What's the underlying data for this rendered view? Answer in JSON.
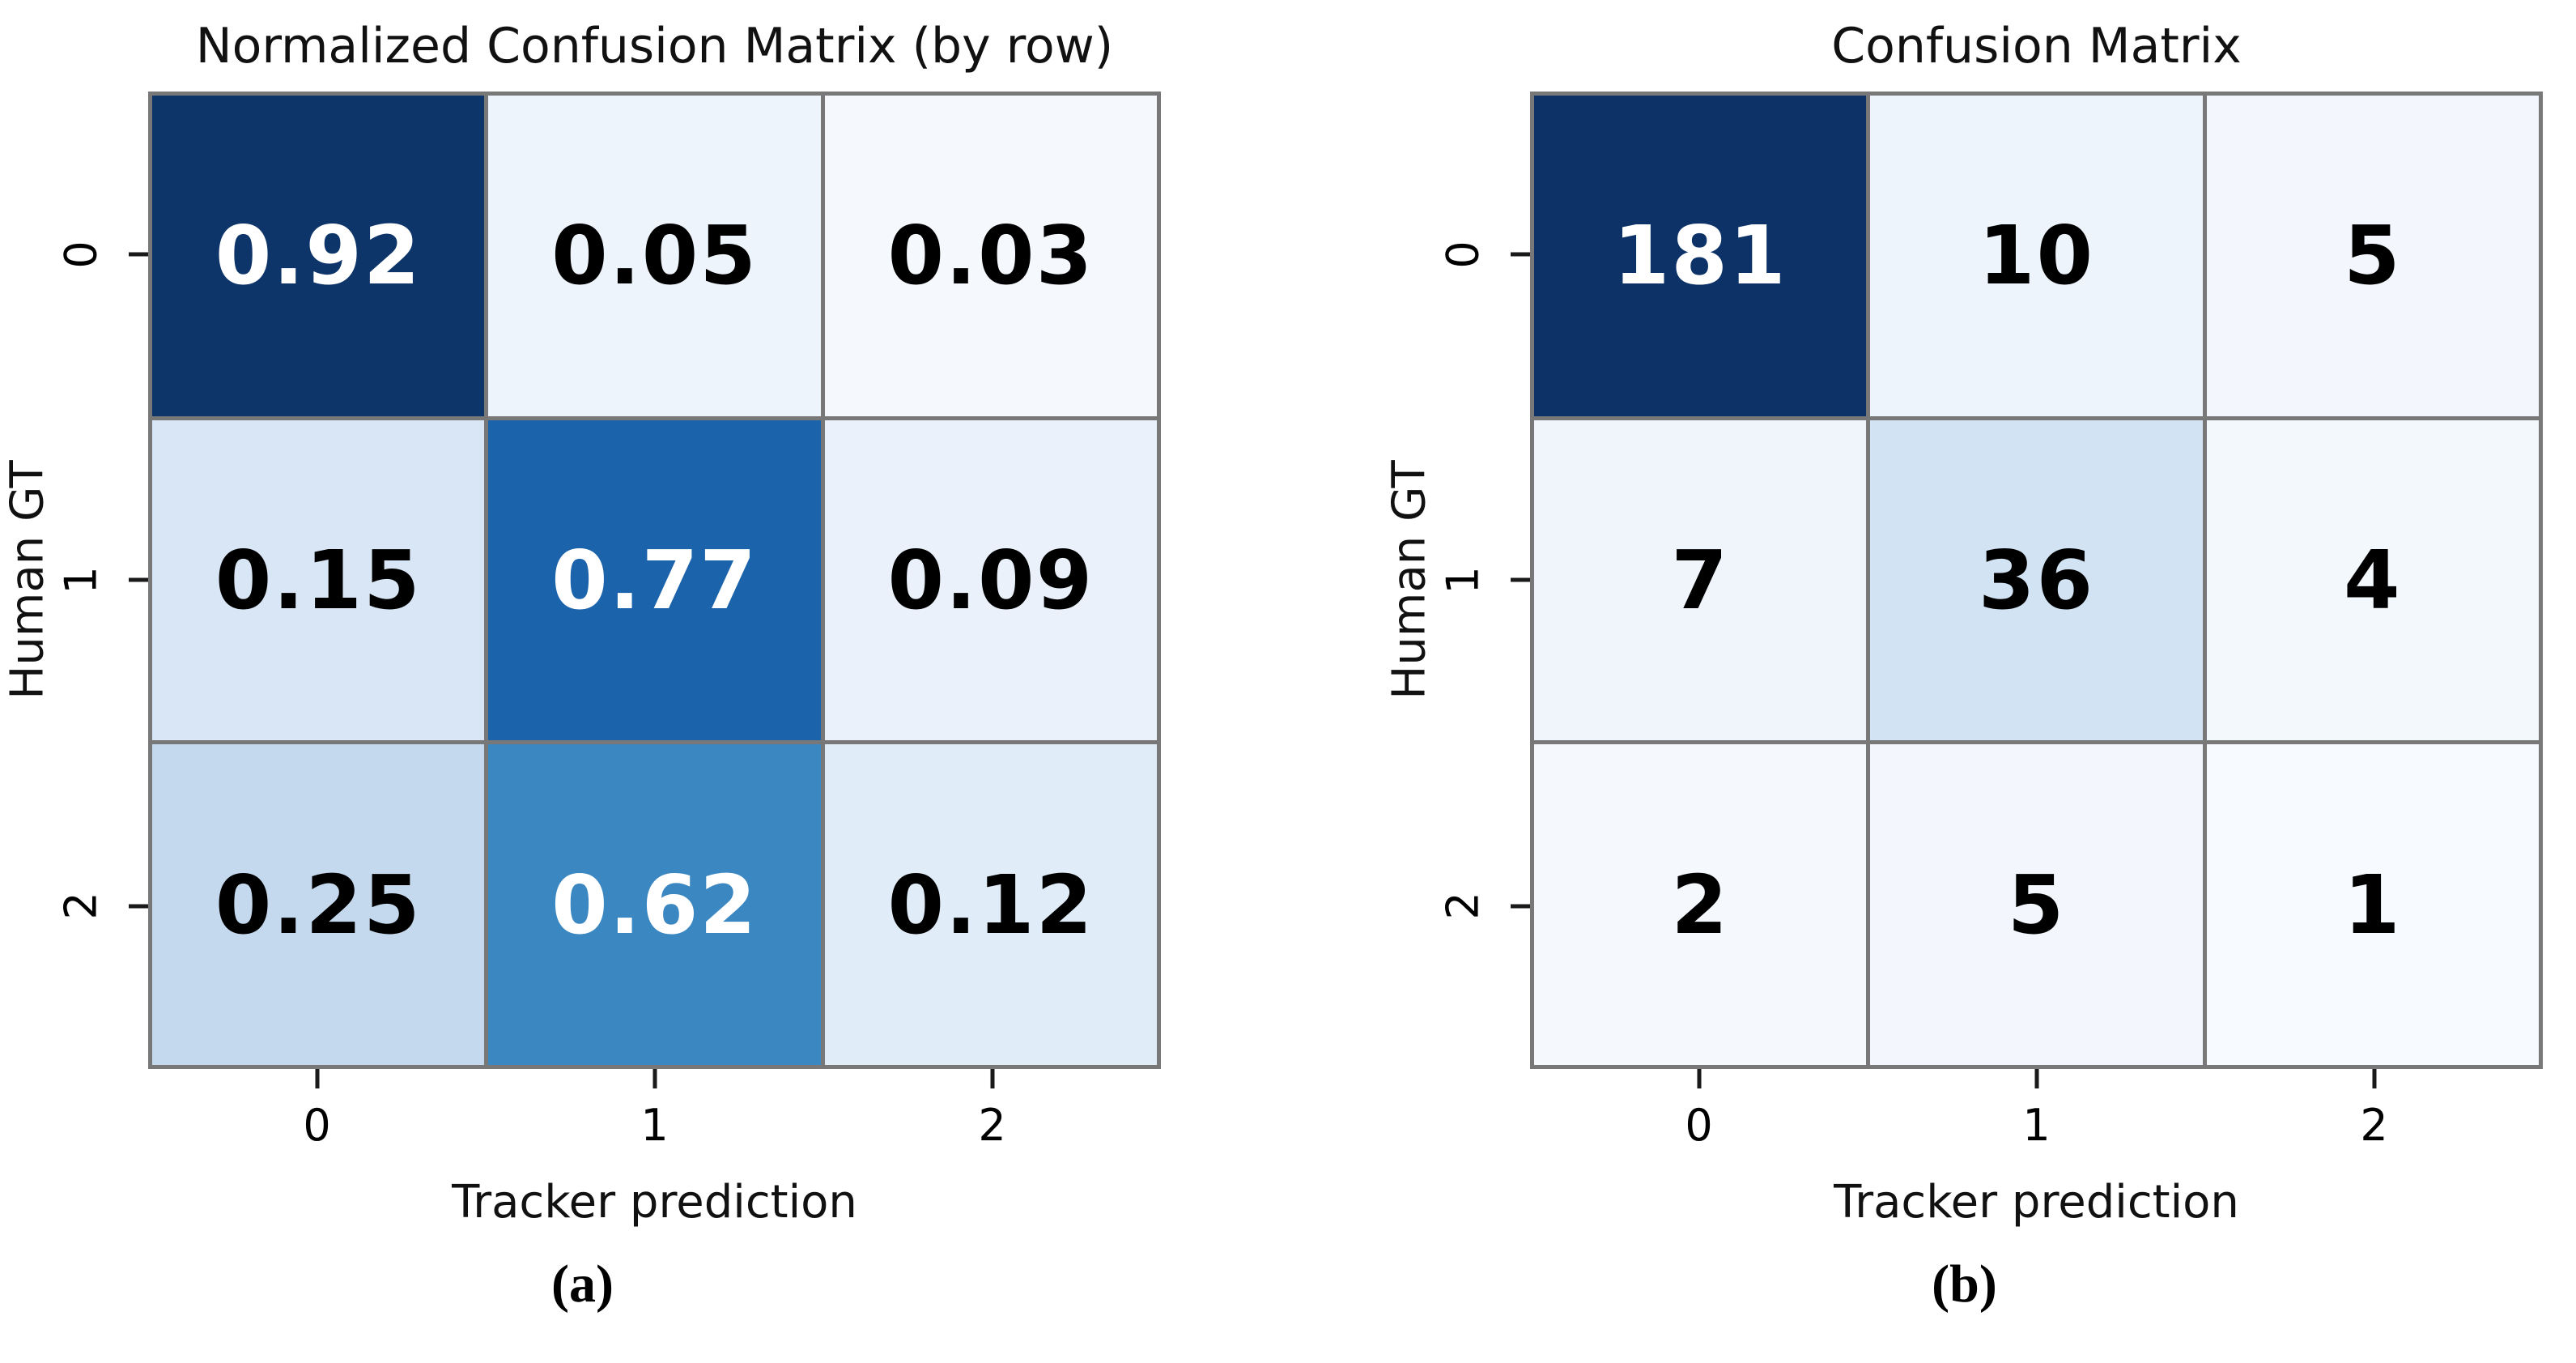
{
  "colors": {
    "grid_line": "#787878",
    "tick_mark": "#1a1a1a",
    "annotation_light": "#ffffff",
    "annotation_dark": "#000000",
    "background": "#ffffff",
    "colormap": "Blues"
  },
  "chart_data": [
    {
      "type": "heatmap",
      "title": "Normalized Confusion Matrix (by row)",
      "xlabel": "Tracker prediction",
      "ylabel": "Human GT",
      "x_ticks": [
        "0",
        "1",
        "2"
      ],
      "y_ticks": [
        "0",
        "1",
        "2"
      ],
      "caption": "(a)",
      "rows": [
        [
          {
            "value": "0.92",
            "bg": "#0e356a",
            "fg": "#ffffff"
          },
          {
            "value": "0.05",
            "bg": "#eef4fb",
            "fg": "#000000"
          },
          {
            "value": "0.03",
            "bg": "#f5f9fe",
            "fg": "#000000"
          }
        ],
        [
          {
            "value": "0.15",
            "bg": "#d8e6f5",
            "fg": "#000000"
          },
          {
            "value": "0.77",
            "bg": "#1b63ab",
            "fg": "#ffffff"
          },
          {
            "value": "0.09",
            "bg": "#eaf1fa",
            "fg": "#000000"
          }
        ],
        [
          {
            "value": "0.25",
            "bg": "#c5d9ee",
            "fg": "#000000"
          },
          {
            "value": "0.62",
            "bg": "#3a87c2",
            "fg": "#ffffff"
          },
          {
            "value": "0.12",
            "bg": "#e0ecf7",
            "fg": "#000000"
          }
        ]
      ]
    },
    {
      "type": "heatmap",
      "title": "Confusion Matrix",
      "xlabel": "Tracker prediction",
      "ylabel": "Human GT",
      "x_ticks": [
        "0",
        "1",
        "2"
      ],
      "y_ticks": [
        "0",
        "1",
        "2"
      ],
      "caption": "(b)",
      "rows": [
        [
          {
            "value": "181",
            "bg": "#0c3268",
            "fg": "#ffffff"
          },
          {
            "value": "10",
            "bg": "#eef4fb",
            "fg": "#000000"
          },
          {
            "value": "5",
            "bg": "#f3f7fd",
            "fg": "#000000"
          }
        ],
        [
          {
            "value": "7",
            "bg": "#f0f5fc",
            "fg": "#000000"
          },
          {
            "value": "36",
            "bg": "#d2e3f3",
            "fg": "#000000"
          },
          {
            "value": "4",
            "bg": "#f3f8fd",
            "fg": "#000000"
          }
        ],
        [
          {
            "value": "2",
            "bg": "#f5f9fe",
            "fg": "#000000"
          },
          {
            "value": "5",
            "bg": "#f3f7fd",
            "fg": "#000000"
          },
          {
            "value": "1",
            "bg": "#f7fbff",
            "fg": "#000000"
          }
        ]
      ]
    }
  ]
}
